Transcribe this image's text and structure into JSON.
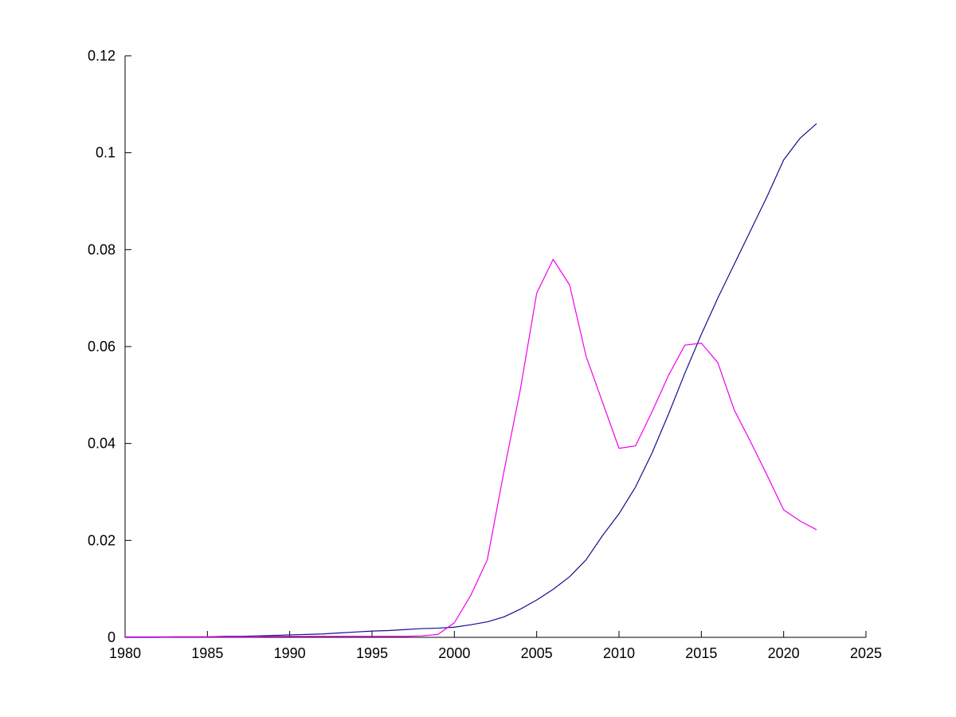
{
  "figure": {
    "background": "#FFFFFF",
    "title": ""
  },
  "chart_data": {
    "type": "line",
    "title": "",
    "xlabel": "",
    "ylabel": "",
    "grid": false,
    "legend": null,
    "axes": {
      "box": false,
      "tick_direction": "in",
      "axis_color": "#000000",
      "background": "#FFFFFF"
    },
    "xlim": [
      1980,
      2025
    ],
    "ylim": [
      0,
      0.12
    ],
    "x_ticks": [
      1980,
      1985,
      1990,
      1995,
      2000,
      2005,
      2010,
      2015,
      2020,
      2025
    ],
    "x_tick_labels": [
      "1980",
      "1985",
      "1990",
      "1995",
      "2000",
      "2005",
      "2010",
      "2015",
      "2020",
      "2025"
    ],
    "y_ticks": [
      0,
      0.02,
      0.04,
      0.06,
      0.08,
      0.1,
      0.12
    ],
    "y_tick_labels": [
      "0",
      "0.02",
      "0.04",
      "0.06",
      "0.08",
      "0.1",
      "0.12"
    ],
    "x": [
      1980,
      1981,
      1982,
      1983,
      1984,
      1985,
      1986,
      1987,
      1988,
      1989,
      1990,
      1991,
      1992,
      1993,
      1994,
      1995,
      1996,
      1997,
      1998,
      1999,
      2000,
      2001,
      2002,
      2003,
      2004,
      2005,
      2006,
      2007,
      2008,
      2009,
      2010,
      2011,
      2012,
      2013,
      2014,
      2015,
      2016,
      2017,
      2018,
      2019,
      2020,
      2021,
      2022
    ],
    "series": [
      {
        "name": "dark-blue-rising-curve",
        "color": "#10108B",
        "values": [
          0.0,
          0.0,
          0.0,
          0.0001,
          0.0001,
          0.0001,
          0.0002,
          0.0002,
          0.0003,
          0.0004,
          0.0005,
          0.0006,
          0.0007,
          0.0009,
          0.0011,
          0.0013,
          0.0014,
          0.0016,
          0.0018,
          0.0019,
          0.0021,
          0.0026,
          0.0032,
          0.0042,
          0.0058,
          0.0077,
          0.0099,
          0.0125,
          0.016,
          0.021,
          0.0255,
          0.031,
          0.038,
          0.046,
          0.0545,
          0.0625,
          0.07,
          0.077,
          0.084,
          0.091,
          0.0985,
          0.103,
          0.106
        ]
      },
      {
        "name": "magenta-double-peak-curve",
        "color": "#EE00EE",
        "values": [
          0.0001,
          0.0001,
          0.0001,
          0.0001,
          0.0001,
          0.0001,
          0.0001,
          0.0001,
          0.0001,
          0.0002,
          0.0002,
          0.0002,
          0.0002,
          0.0002,
          0.0002,
          0.0002,
          0.0002,
          0.0002,
          0.0003,
          0.0006,
          0.003,
          0.0087,
          0.016,
          0.034,
          0.051,
          0.071,
          0.078,
          0.0727,
          0.058,
          0.0485,
          0.039,
          0.0395,
          0.0465,
          0.054,
          0.0603,
          0.0607,
          0.0567,
          0.0469,
          0.0403,
          0.0334,
          0.0263,
          0.024,
          0.0222
        ]
      }
    ]
  }
}
